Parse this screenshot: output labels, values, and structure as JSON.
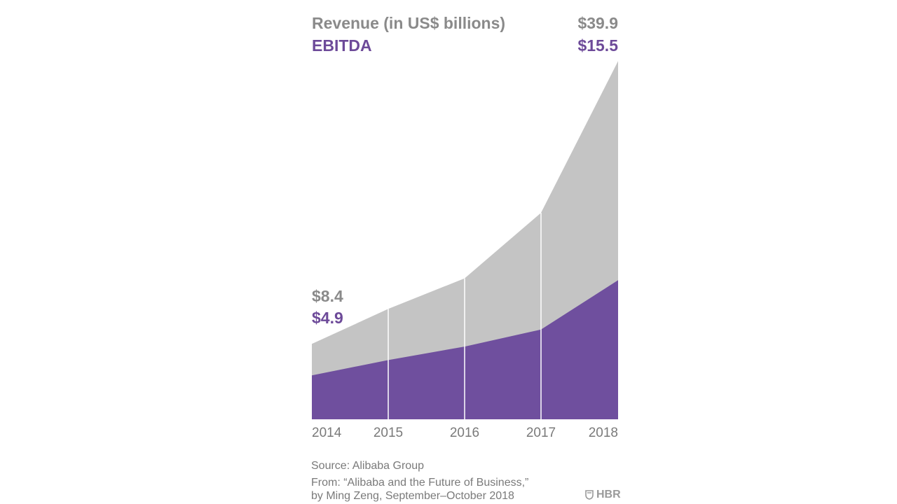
{
  "chart_data": {
    "type": "area",
    "stacked": false,
    "categories": [
      "2014",
      "2015",
      "2016",
      "2017",
      "2018"
    ],
    "series": [
      {
        "name": "Revenue (in US$ billions)",
        "color": "#c4c4c4",
        "values": [
          8.4,
          12.3,
          15.7,
          23.0,
          39.9
        ]
      },
      {
        "name": "EBITDA",
        "color": "#6f4f9e",
        "values": [
          4.9,
          6.6,
          8.1,
          10.0,
          15.5
        ]
      }
    ],
    "ylim": [
      0,
      40
    ],
    "legend": {
      "revenue": "Revenue (in US$ billions)",
      "ebitda": "EBITDA"
    },
    "annotations": {
      "revenue_start": "$8.4",
      "ebitda_start": "$4.9",
      "revenue_end": "$39.9",
      "ebitda_end": "$15.5"
    }
  },
  "footer": {
    "source": "Source: Alibaba Group",
    "from_line1": "From: “Alibaba and the Future of Business,”",
    "from_line2": "by Ming Zeng, September–October 2018",
    "brand": "HBR"
  }
}
